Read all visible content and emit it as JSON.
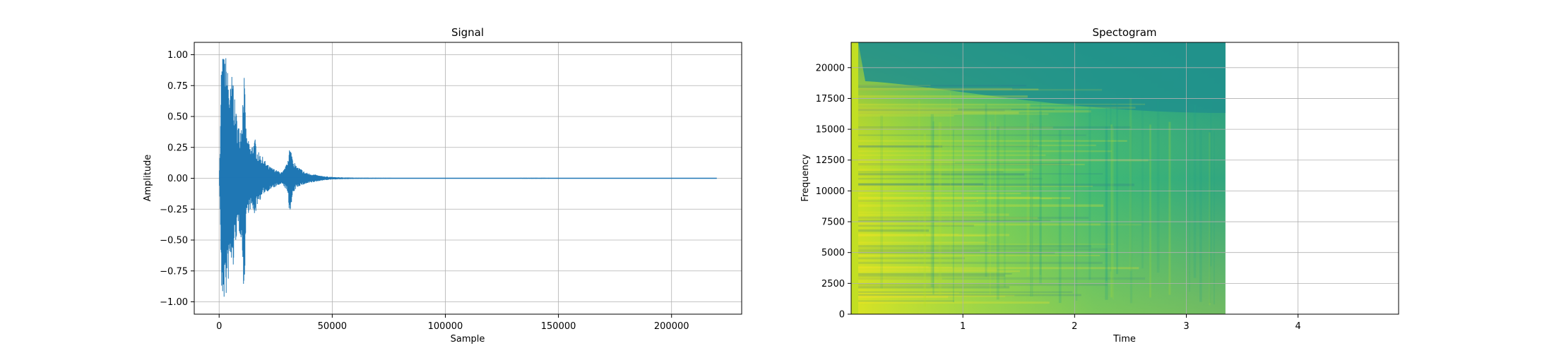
{
  "chart_data": [
    {
      "type": "line",
      "title": "Signal",
      "xlabel": "Sample",
      "ylabel": "Amplitude",
      "xlim": [
        -11000,
        231000
      ],
      "ylim": [
        -1.1,
        1.1
      ],
      "grid": true,
      "color": "#1f77b4",
      "xticks": [
        0,
        50000,
        100000,
        150000,
        200000
      ],
      "xtick_labels": [
        "0",
        "50000",
        "100000",
        "150000",
        "200000"
      ],
      "yticks": [
        -1.0,
        -0.75,
        -0.5,
        -0.25,
        0.0,
        0.25,
        0.5,
        0.75,
        1.0
      ],
      "ytick_labels": [
        "−1.00",
        "−0.75",
        "−0.50",
        "−0.25",
        "0.00",
        "0.25",
        "0.50",
        "0.75",
        "1.00"
      ],
      "series": [
        {
          "x": [
            0,
            500,
            1000,
            2000,
            3000,
            4000,
            5000,
            6000,
            7000,
            8000,
            9000,
            10000,
            11000,
            12000,
            13000,
            14000,
            15000,
            16000,
            17000,
            18000,
            19000,
            20000,
            22000,
            24000,
            26000,
            28000,
            30000,
            31000,
            32000,
            33000,
            34000,
            36000,
            38000,
            40000,
            45000,
            50000,
            60000,
            80000,
            100000,
            120000,
            140000,
            160000,
            180000,
            200000,
            220000
          ],
          "max": [
            0.0,
            0.3,
            1.0,
            1.0,
            1.0,
            0.85,
            0.75,
            0.9,
            0.6,
            0.5,
            0.4,
            0.5,
            0.9,
            0.35,
            0.3,
            0.25,
            0.3,
            0.32,
            0.22,
            0.2,
            0.18,
            0.15,
            0.1,
            0.08,
            0.06,
            0.05,
            0.12,
            0.26,
            0.22,
            0.15,
            0.1,
            0.08,
            0.05,
            0.04,
            0.02,
            0.01,
            0.005,
            0.003,
            0.002,
            0.002,
            0.004,
            0.002,
            0.001,
            0.001,
            0.0
          ],
          "min": [
            0.0,
            -0.3,
            -1.0,
            -1.0,
            -1.0,
            -0.85,
            -0.7,
            -0.8,
            -0.55,
            -0.45,
            -0.45,
            -0.5,
            -1.0,
            -0.3,
            -0.28,
            -0.25,
            -0.28,
            -0.3,
            -0.2,
            -0.18,
            -0.15,
            -0.12,
            -0.1,
            -0.08,
            -0.06,
            -0.05,
            -0.1,
            -0.28,
            -0.22,
            -0.12,
            -0.08,
            -0.06,
            -0.05,
            -0.04,
            -0.02,
            -0.01,
            -0.005,
            -0.003,
            -0.002,
            -0.002,
            -0.004,
            -0.002,
            -0.001,
            -0.001,
            0.0
          ]
        }
      ]
    },
    {
      "type": "heatmap",
      "title": "Spectogram",
      "xlabel": "Time",
      "ylabel": "Frequency",
      "xlim": [
        0,
        4.9
      ],
      "ylim": [
        0,
        22050
      ],
      "grid": true,
      "colormap": "viridis",
      "data_extent": [
        0.0,
        3.35
      ],
      "xticks": [
        1,
        2,
        3,
        4
      ],
      "xtick_labels": [
        "1",
        "2",
        "3",
        "4"
      ],
      "yticks": [
        0,
        2500,
        5000,
        7500,
        10000,
        12500,
        15000,
        17500,
        20000
      ],
      "ytick_labels": [
        "0",
        "2500",
        "5000",
        "7500",
        "10000",
        "12500",
        "15000",
        "17500",
        "20000"
      ]
    }
  ]
}
